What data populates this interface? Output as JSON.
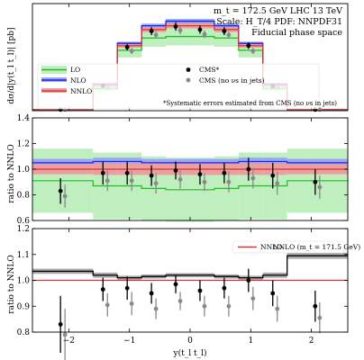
{
  "chart_data": {
    "type": "line",
    "annotations": {
      "line1": "m_t = 172.5 GeV LHC 13 TeV",
      "line2": "Scale: H_T/4 PDF: NNPDF31",
      "line3": "Fiducial phase space",
      "footnote": "*Systematic errors estimated from CMS (no νs in jets)"
    },
    "x_label": "y(t_l t_l)",
    "x_range": [
      -2.6,
      2.6
    ],
    "x_ticks": [
      "−2",
      "−1",
      "0",
      "1",
      "2"
    ],
    "x_tick_values": [
      -2,
      -1,
      0,
      1,
      2
    ],
    "bin_edges": [
      -2.6,
      -1.6,
      -1.2,
      -0.8,
      -0.4,
      0,
      0.4,
      0.8,
      1.2,
      1.6,
      2.6
    ],
    "data_x": [
      -2.1,
      -1.4,
      -1.0,
      -0.6,
      -0.2,
      0.2,
      0.6,
      1.0,
      1.4,
      2.1
    ],
    "panel_top": {
      "ylabel": "dσ/d|y(t_l t_l)| [pb]",
      "ylim": [
        0,
        7
      ],
      "legend": {
        "lo": "LO",
        "nlo": "NLO",
        "nnlo": "NNLO",
        "cms": "CMS*",
        "cms_nonu": "CMS (no νs in jets)"
      },
      "series": {
        "LO": [
          0.05,
          1.45,
          3.95,
          4.75,
          4.85,
          4.85,
          4.75,
          3.95,
          1.45,
          0.05
        ],
        "NLO": [
          0.08,
          1.75,
          4.4,
          5.55,
          5.85,
          5.85,
          5.55,
          4.4,
          1.75,
          0.08
        ],
        "NNLO": [
          0.08,
          1.65,
          4.25,
          5.3,
          5.55,
          5.55,
          5.3,
          4.25,
          1.65,
          0.08
        ],
        "CMS": [
          0.07,
          1.62,
          4.15,
          5.2,
          5.5,
          5.3,
          5.2,
          4.25,
          1.6,
          0.07
        ],
        "CMS_no_nu": [
          0.07,
          1.5,
          3.9,
          4.95,
          5.25,
          5.0,
          4.95,
          3.9,
          1.5,
          0.07
        ]
      }
    },
    "panel_mid": {
      "ylabel": "ratio to NNLO",
      "ylim": [
        0.6,
        1.4
      ],
      "y_ticks": [
        "0.6",
        "0.8",
        "1.0",
        "1.2",
        "1.4"
      ],
      "y_tick_values": [
        0.6,
        0.8,
        1.0,
        1.2,
        1.4
      ],
      "LO_ratio": [
        0.91,
        0.87,
        0.87,
        0.85,
        0.84,
        0.84,
        0.85,
        0.87,
        0.87,
        0.91
      ],
      "LO_band": [
        0.25,
        0.26,
        0.26,
        0.25,
        0.25,
        0.25,
        0.25,
        0.26,
        0.26,
        0.25
      ],
      "NLO_ratio": [
        1.05,
        1.06,
        1.06,
        1.05,
        1.05,
        1.05,
        1.05,
        1.06,
        1.06,
        1.05
      ],
      "NLO_band": [
        0.03,
        0.03,
        0.03,
        0.03,
        0.03,
        0.03,
        0.03,
        0.03,
        0.03,
        0.03
      ],
      "NNLO_band": [
        0.04,
        0.045,
        0.045,
        0.045,
        0.045,
        0.045,
        0.045,
        0.045,
        0.045,
        0.04
      ],
      "CMS": [
        0.83,
        0.97,
        0.97,
        0.95,
        0.99,
        0.96,
        0.97,
        1.0,
        0.95,
        0.9
      ],
      "CMS_err": [
        0.1,
        0.09,
        0.09,
        0.08,
        0.07,
        0.08,
        0.08,
        0.09,
        0.1,
        0.1
      ],
      "CMS_no_nu": [
        0.79,
        0.91,
        0.91,
        0.89,
        0.92,
        0.9,
        0.9,
        0.93,
        0.89,
        0.86
      ],
      "CMS_no_nu_err": [
        0.09,
        0.08,
        0.08,
        0.08,
        0.07,
        0.07,
        0.08,
        0.08,
        0.09,
        0.09
      ]
    },
    "panel_bot": {
      "ylabel": "ratio to NNLO",
      "ylim": [
        0.8,
        1.2
      ],
      "y_ticks": [
        "0.8",
        "0.9",
        "1.0",
        "1.1",
        "1.2"
      ],
      "y_tick_values": [
        0.8,
        0.9,
        1.0,
        1.1,
        1.2
      ],
      "legend": {
        "nnlo": "NNLO",
        "nnlo_alt": "NNLO (m_t = 171.5 GeV)"
      },
      "alt_ratio": [
        1.035,
        1.02,
        1.01,
        1.015,
        1.02,
        1.02,
        1.015,
        1.01,
        1.02,
        1.095
      ],
      "alt_band": [
        0.01,
        0.01,
        0.008,
        0.008,
        0.008,
        0.008,
        0.008,
        0.008,
        0.01,
        0.012
      ],
      "CMS": [
        0.83,
        0.965,
        0.97,
        0.95,
        0.985,
        0.96,
        0.97,
        1.0,
        0.95,
        0.9
      ],
      "CMS_err": [
        0.11,
        0.045,
        0.045,
        0.04,
        0.035,
        0.04,
        0.04,
        0.045,
        0.05,
        0.06
      ],
      "CMS_no_nu": [
        0.79,
        0.905,
        0.91,
        0.89,
        0.92,
        0.9,
        0.9,
        0.93,
        0.89,
        0.855
      ],
      "CMS_no_nu_err": [
        0.1,
        0.045,
        0.045,
        0.04,
        0.035,
        0.04,
        0.04,
        0.045,
        0.05,
        0.06
      ]
    },
    "colors": {
      "LO": "#22bb22",
      "LO_band": "#bfeebf",
      "NLO": "#1f1fee",
      "NLO_band": "#9aa6f5",
      "NNLO": "#e03030",
      "NNLO_band": "#eba0a0",
      "alt": "#000000",
      "alt_band": "#aaaaaa",
      "CMS": "#000000",
      "CMS_no_nu": "#8a8a8a"
    }
  }
}
